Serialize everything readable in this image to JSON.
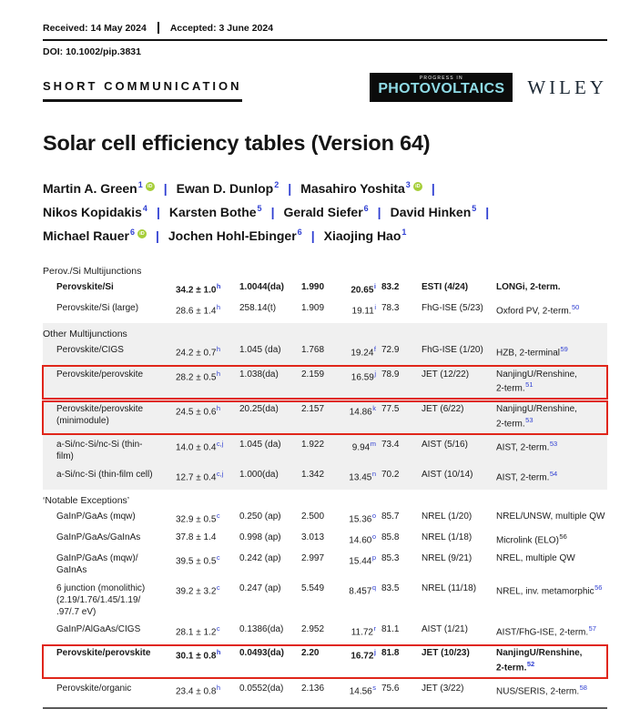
{
  "header": {
    "received": "Received: 14 May 2024",
    "accepted": "Accepted: 3 June 2024",
    "doi": "DOI: 10.1002/pip.3831",
    "article_type": "SHORT COMMUNICATION",
    "journal_logo": {
      "tagline": "PROGRESS IN",
      "name": "PHOTOVOLTAICS"
    },
    "publisher": "WILEY"
  },
  "title": "Solar cell efficiency tables (Version 64)",
  "author_lines": [
    [
      {
        "name": "Martin A. Green",
        "sup": "1",
        "orcid": true
      },
      {
        "name": "Ewan D. Dunlop",
        "sup": "2",
        "orcid": false
      },
      {
        "name": "Masahiro Yoshita",
        "sup": "3",
        "orcid": true
      }
    ],
    [
      {
        "name": "Nikos Kopidakis",
        "sup": "4",
        "orcid": false
      },
      {
        "name": "Karsten Bothe",
        "sup": "5",
        "orcid": false
      },
      {
        "name": "Gerald Siefer",
        "sup": "6",
        "orcid": false
      },
      {
        "name": "David Hinken",
        "sup": "5",
        "orcid": false
      }
    ],
    [
      {
        "name": "Michael Rauer",
        "sup": "6",
        "orcid": true
      },
      {
        "name": "Jochen Hohl-Ebinger",
        "sup": "6",
        "orcid": false
      },
      {
        "name": "Xiaojing Hao",
        "sup": "1",
        "orcid": false
      }
    ]
  ],
  "colors": {
    "accent_blue": "#2f3fd2",
    "orcid_green": "#a6ce39",
    "highlight_red": "#e0261a",
    "section_gray": "#f0f0f0",
    "logo_cyan": "#8fdbe6"
  },
  "table": {
    "sections": [
      {
        "label": "Perov./Si Multijunctions",
        "shaded": false,
        "rows": [
          {
            "desc": "Perovskite/Si",
            "bold": true,
            "redbox": false,
            "eff": "34.2 ± 1.0",
            "eff_sup": "h",
            "area": "1.0044(da)",
            "voc": "1.990",
            "jsc": "20.65",
            "jsc_sup": "i",
            "ff": "83.2",
            "centre": "ESTI (4/24)",
            "note": "LONGi, 2-term.",
            "note_sup": ""
          },
          {
            "desc": "Perovskite/Si (large)",
            "bold": false,
            "redbox": false,
            "eff": "28.6 ± 1.4",
            "eff_sup": "h",
            "area": "258.14(t)",
            "voc": "1.909",
            "jsc": "19.11",
            "jsc_sup": "i",
            "ff": "78.3",
            "centre": "FhG-ISE (5/23)",
            "note": "Oxford PV, 2-term.",
            "note_sup": "50"
          }
        ]
      },
      {
        "label": "Other Multijunctions",
        "shaded": true,
        "rows": [
          {
            "desc": "Perovskite/CIGS",
            "bold": false,
            "redbox": false,
            "eff": "24.2 ± 0.7",
            "eff_sup": "h",
            "area": "1.045 (da)",
            "voc": "1.768",
            "jsc": "19.24",
            "jsc_sup": "f",
            "ff": "72.9",
            "centre": "FhG-ISE (1/20)",
            "note": "HZB, 2-terminal",
            "note_sup": "59"
          },
          {
            "desc": "Perovskite/perovskite",
            "bold": false,
            "redbox": true,
            "eff": "28.2 ± 0.5",
            "eff_sup": "h",
            "area": "1.038(da)",
            "voc": "2.159",
            "jsc": "16.59",
            "jsc_sup": "j",
            "ff": "78.9",
            "centre": "JET (12/22)",
            "note": "NanjingU/Renshine,\n2-term.",
            "note_sup": "51"
          },
          {
            "desc": "Perovskite/perovskite\n(minimodule)",
            "bold": false,
            "redbox": true,
            "eff": "24.5 ± 0.6",
            "eff_sup": "h",
            "area": "20.25(da)",
            "voc": "2.157",
            "jsc": "14.86",
            "jsc_sup": "k",
            "ff": "77.5",
            "centre": "JET (6/22)",
            "note": "NanjingU/Renshine,\n2-term.",
            "note_sup": "53"
          },
          {
            "desc": "a-Si/nc-Si/nc-Si (thin-\nfilm)",
            "bold": false,
            "redbox": false,
            "eff": "14.0 ± 0.4",
            "eff_sup": "c,j",
            "area": "1.045 (da)",
            "voc": "1.922",
            "jsc": "9.94",
            "jsc_sup": "m",
            "ff": "73.4",
            "centre": "AIST (5/16)",
            "note": "AIST, 2-term.",
            "note_sup": "53"
          },
          {
            "desc": "a-Si/nc-Si (thin-film cell)",
            "bold": false,
            "redbox": false,
            "eff": "12.7 ± 0.4",
            "eff_sup": "c,j",
            "area": "1.000(da)",
            "voc": "1.342",
            "jsc": "13.45",
            "jsc_sup": "n",
            "ff": "70.2",
            "centre": "AIST (10/14)",
            "note": "AIST, 2-term.",
            "note_sup": "54"
          }
        ]
      },
      {
        "label": "‘Notable Exceptions’",
        "shaded": false,
        "rows": [
          {
            "desc": "GaInP/GaAs (mqw)",
            "bold": false,
            "redbox": false,
            "eff": "32.9 ± 0.5",
            "eff_sup": "c",
            "area": "0.250 (ap)",
            "voc": "2.500",
            "jsc": "15.36",
            "jsc_sup": "o",
            "ff": "85.7",
            "centre": "NREL (1/20)",
            "note": "NREL/UNSW, multiple QW",
            "note_sup": ""
          },
          {
            "desc": "GaInP/GaAs/GaInAs",
            "bold": false,
            "redbox": false,
            "eff": "37.8 ± 1.4",
            "eff_sup": "",
            "area": "0.998 (ap)",
            "voc": "3.013",
            "jsc": "14.60",
            "jsc_sup": "o",
            "ff": "85.8",
            "centre": "NREL (1/18)",
            "note": "Microlink (ELO)",
            "note_sup": "56",
            "note_sup_dark": true
          },
          {
            "desc": "GaInP/GaAs (mqw)/\nGaInAs",
            "bold": false,
            "redbox": false,
            "eff": "39.5 ± 0.5",
            "eff_sup": "c",
            "area": "0.242 (ap)",
            "voc": "2.997",
            "jsc": "15.44",
            "jsc_sup": "p",
            "ff": "85.3",
            "centre": "NREL (9/21)",
            "note": "NREL, multiple QW",
            "note_sup": ""
          },
          {
            "desc": "6 junction (monolithic)\n(2.19/1.76/1.45/1.19/\n.97/.7 eV)",
            "bold": false,
            "redbox": false,
            "eff": "39.2 ± 3.2",
            "eff_sup": "c",
            "area": "0.247 (ap)",
            "voc": "5.549",
            "jsc": "8.457",
            "jsc_sup": "q",
            "ff": "83.5",
            "centre": "NREL (11/18)",
            "note": "NREL, inv. metamorphic",
            "note_sup": "56"
          },
          {
            "desc": "GaInP/AlGaAs/CIGS",
            "bold": false,
            "redbox": false,
            "eff": "28.1 ± 1.2",
            "eff_sup": "c",
            "area": "0.1386(da)",
            "voc": "2.952",
            "jsc": "11.72",
            "jsc_sup": "r",
            "ff": "81.1",
            "centre": "AIST (1/21)",
            "note": "AIST/FhG-ISE, 2-term.",
            "note_sup": "57"
          },
          {
            "desc": "Perovskite/perovskite",
            "bold": true,
            "redbox": true,
            "eff": "30.1 ± 0.8",
            "eff_sup": "h",
            "area": "0.0493(da)",
            "voc": "2.20",
            "jsc": "16.72",
            "jsc_sup": "j",
            "ff": "81.8",
            "centre": "JET (10/23)",
            "note": "NanjingU/Renshine,\n2-term.",
            "note_sup": "52"
          },
          {
            "desc": "Perovskite/organic",
            "bold": false,
            "redbox": false,
            "eff": "23.4 ± 0.8",
            "eff_sup": "h",
            "area": "0.0552(da)",
            "voc": "2.136",
            "jsc": "14.56",
            "jsc_sup": "s",
            "ff": "75.6",
            "centre": "JET (3/22)",
            "note": "NUS/SERIS, 2-term.",
            "note_sup": "58"
          }
        ]
      }
    ]
  }
}
